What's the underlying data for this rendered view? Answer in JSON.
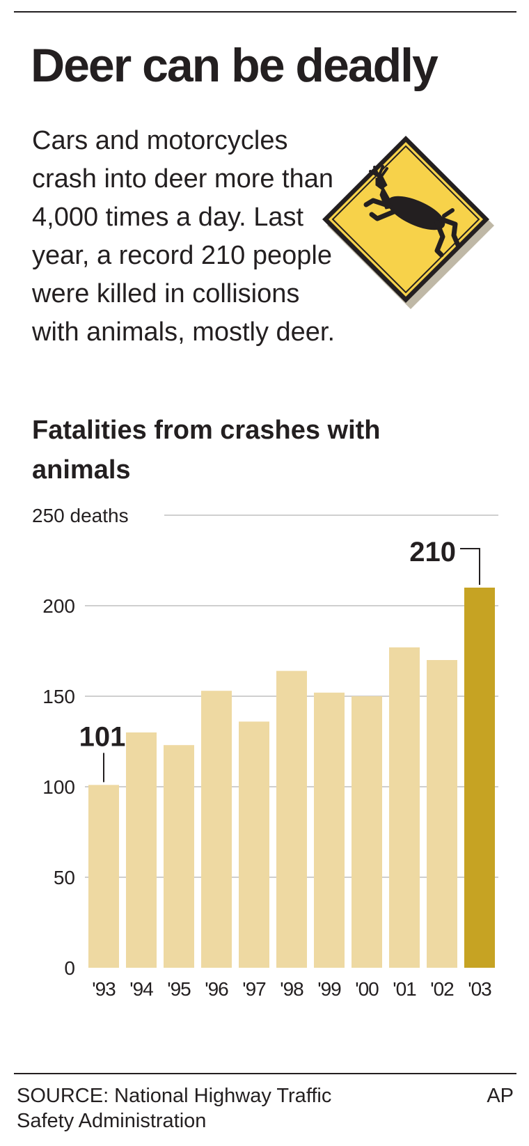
{
  "header": {
    "title": "Deer can be deadly",
    "intro": "Cars and motorcycles crash into deer more than 4,000 times a day. Last year, a record 210 people were killed in collisions with animals, mostly deer."
  },
  "sign": {
    "icon": "deer-crossing-sign-icon",
    "fill_color": "#f7d24a",
    "border_color": "#231f20"
  },
  "chart_data": {
    "type": "bar",
    "title": "Fatalities from crashes with animals",
    "ylabel": "",
    "xlabel": "",
    "y_unit_label": "250 deaths",
    "ylim": [
      0,
      250
    ],
    "yticks": [
      0,
      50,
      100,
      150,
      200,
      250
    ],
    "grid": true,
    "categories": [
      "'93",
      "'94",
      "'95",
      "'96",
      "'97",
      "'98",
      "'99",
      "'00",
      "'01",
      "'02",
      "'03"
    ],
    "values": [
      101,
      130,
      123,
      153,
      136,
      164,
      152,
      150,
      177,
      170,
      210
    ],
    "highlight_index": 10,
    "bar_color": "#eed9a2",
    "highlight_color": "#c6a323",
    "annotations": [
      {
        "index": 0,
        "text": "101"
      },
      {
        "index": 10,
        "text": "210"
      }
    ]
  },
  "footer": {
    "source": "SOURCE: National Highway Traffic Safety Administration",
    "credit": "AP"
  }
}
